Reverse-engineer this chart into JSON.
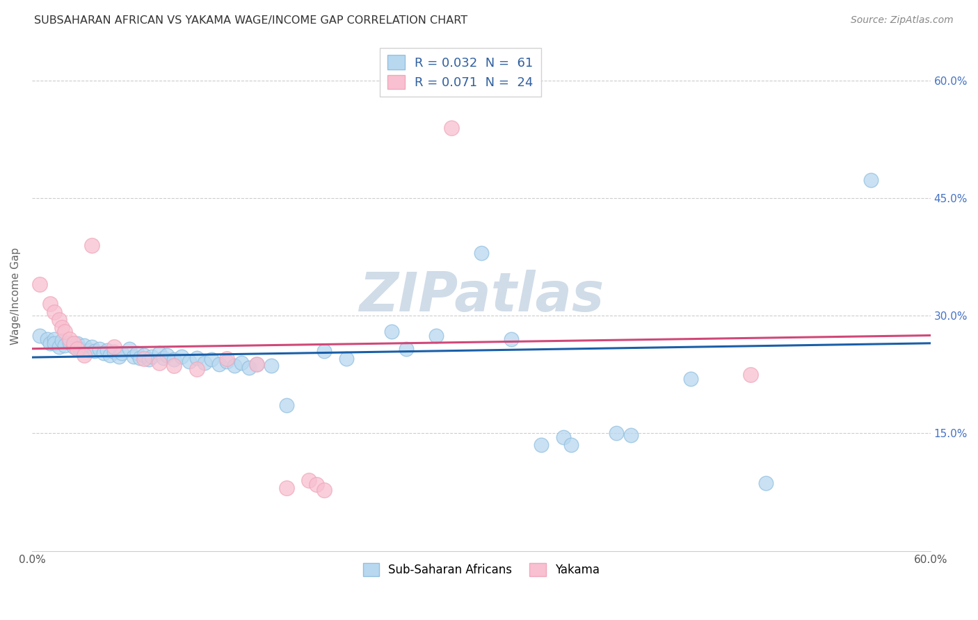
{
  "title": "SUBSAHARAN AFRICAN VS YAKAMA WAGE/INCOME GAP CORRELATION CHART",
  "source": "Source: ZipAtlas.com",
  "ylabel": "Wage/Income Gap",
  "xlim": [
    0.0,
    0.6
  ],
  "ylim": [
    0.0,
    0.65
  ],
  "ytick_labels": [
    "15.0%",
    "30.0%",
    "45.0%",
    "60.0%"
  ],
  "ytick_values": [
    0.15,
    0.3,
    0.45,
    0.6
  ],
  "blue_color": "#92c0e0",
  "pink_color": "#f0a8bc",
  "blue_fill": "#b8d8f0",
  "pink_fill": "#f8c0d0",
  "blue_line_color": "#1a5fa8",
  "pink_line_color": "#d04878",
  "watermark_color": "#d0dce8",
  "blue_scatter": [
    [
      0.005,
      0.275
    ],
    [
      0.01,
      0.27
    ],
    [
      0.012,
      0.265
    ],
    [
      0.015,
      0.27
    ],
    [
      0.015,
      0.265
    ],
    [
      0.018,
      0.26
    ],
    [
      0.02,
      0.268
    ],
    [
      0.022,
      0.262
    ],
    [
      0.025,
      0.266
    ],
    [
      0.028,
      0.26
    ],
    [
      0.03,
      0.265
    ],
    [
      0.032,
      0.258
    ],
    [
      0.035,
      0.262
    ],
    [
      0.038,
      0.256
    ],
    [
      0.04,
      0.26
    ],
    [
      0.042,
      0.255
    ],
    [
      0.045,
      0.258
    ],
    [
      0.048,
      0.252
    ],
    [
      0.05,
      0.256
    ],
    [
      0.052,
      0.25
    ],
    [
      0.055,
      0.254
    ],
    [
      0.058,
      0.248
    ],
    [
      0.06,
      0.252
    ],
    [
      0.065,
      0.258
    ],
    [
      0.068,
      0.248
    ],
    [
      0.07,
      0.252
    ],
    [
      0.072,
      0.246
    ],
    [
      0.075,
      0.25
    ],
    [
      0.078,
      0.244
    ],
    [
      0.08,
      0.248
    ],
    [
      0.085,
      0.252
    ],
    [
      0.088,
      0.246
    ],
    [
      0.09,
      0.25
    ],
    [
      0.095,
      0.244
    ],
    [
      0.1,
      0.248
    ],
    [
      0.105,
      0.242
    ],
    [
      0.11,
      0.246
    ],
    [
      0.115,
      0.24
    ],
    [
      0.12,
      0.244
    ],
    [
      0.125,
      0.238
    ],
    [
      0.13,
      0.242
    ],
    [
      0.135,
      0.236
    ],
    [
      0.14,
      0.24
    ],
    [
      0.145,
      0.234
    ],
    [
      0.15,
      0.238
    ],
    [
      0.16,
      0.236
    ],
    [
      0.17,
      0.186
    ],
    [
      0.195,
      0.255
    ],
    [
      0.21,
      0.245
    ],
    [
      0.24,
      0.28
    ],
    [
      0.25,
      0.258
    ],
    [
      0.27,
      0.275
    ],
    [
      0.3,
      0.38
    ],
    [
      0.32,
      0.27
    ],
    [
      0.34,
      0.135
    ],
    [
      0.355,
      0.145
    ],
    [
      0.36,
      0.135
    ],
    [
      0.39,
      0.15
    ],
    [
      0.4,
      0.148
    ],
    [
      0.44,
      0.22
    ],
    [
      0.49,
      0.087
    ],
    [
      0.56,
      0.473
    ]
  ],
  "pink_scatter": [
    [
      0.005,
      0.34
    ],
    [
      0.012,
      0.315
    ],
    [
      0.015,
      0.305
    ],
    [
      0.018,
      0.295
    ],
    [
      0.02,
      0.285
    ],
    [
      0.022,
      0.28
    ],
    [
      0.025,
      0.27
    ],
    [
      0.028,
      0.265
    ],
    [
      0.03,
      0.258
    ],
    [
      0.035,
      0.25
    ],
    [
      0.04,
      0.39
    ],
    [
      0.055,
      0.26
    ],
    [
      0.075,
      0.245
    ],
    [
      0.085,
      0.24
    ],
    [
      0.095,
      0.236
    ],
    [
      0.11,
      0.232
    ],
    [
      0.13,
      0.245
    ],
    [
      0.15,
      0.238
    ],
    [
      0.17,
      0.08
    ],
    [
      0.185,
      0.09
    ],
    [
      0.19,
      0.085
    ],
    [
      0.195,
      0.078
    ],
    [
      0.28,
      0.54
    ],
    [
      0.48,
      0.225
    ]
  ],
  "blue_line_x": [
    0.0,
    0.6
  ],
  "blue_line_y": [
    0.247,
    0.265
  ],
  "pink_line_x": [
    0.0,
    0.6
  ],
  "pink_line_y": [
    0.258,
    0.275
  ]
}
